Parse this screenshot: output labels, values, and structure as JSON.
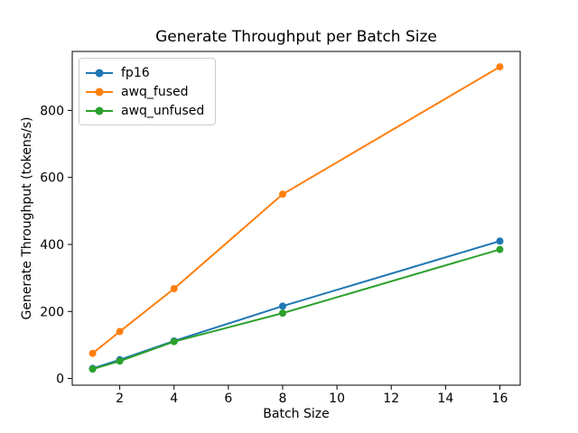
{
  "chart_data": {
    "type": "line",
    "title": "Generate Throughput per Batch Size",
    "xlabel": "Batch Size",
    "ylabel": "Generate Throughput (tokens/s)",
    "x": [
      1,
      2,
      4,
      8,
      16
    ],
    "series": [
      {
        "name": "fp16",
        "color": "#1f77b4",
        "values": [
          30,
          56,
          112,
          216,
          410
        ]
      },
      {
        "name": "awq_fused",
        "color": "#ff7f0e",
        "values": [
          75,
          140,
          268,
          550,
          930
        ]
      },
      {
        "name": "awq_unfused",
        "color": "#2ca02c",
        "values": [
          28,
          52,
          110,
          195,
          385
        ]
      }
    ],
    "xticks": [
      2,
      4,
      6,
      8,
      10,
      12,
      14,
      16
    ],
    "yticks": [
      0,
      200,
      400,
      600,
      800
    ],
    "xlim": [
      0.25,
      16.75
    ],
    "ylim": [
      -20,
      976
    ],
    "grid": false,
    "marker": "circle",
    "legend_position": "upper left",
    "axis_color": "#000000",
    "background_color": "#ffffff"
  }
}
